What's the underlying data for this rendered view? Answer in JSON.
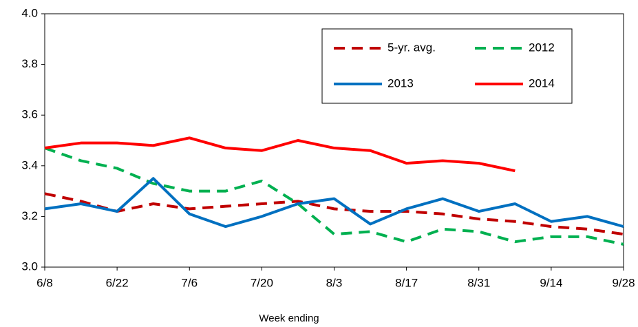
{
  "chart_data": {
    "type": "line",
    "x_label": "Week ending",
    "categories": [
      "6/8",
      null,
      "6/22",
      null,
      "7/6",
      null,
      "7/20",
      null,
      "8/3",
      null,
      "8/17",
      null,
      "8/31",
      null,
      "9/14",
      null,
      "9/28"
    ],
    "series": [
      {
        "name": "5-yr. avg.",
        "color": "#c00000",
        "dashed": true,
        "values": [
          3.29,
          3.26,
          3.22,
          3.25,
          3.23,
          3.24,
          3.25,
          3.26,
          3.23,
          3.22,
          3.22,
          3.21,
          3.19,
          3.18,
          3.16,
          3.15,
          3.13
        ]
      },
      {
        "name": "2012",
        "color": "#00b050",
        "dashed": true,
        "values": [
          3.47,
          3.42,
          3.39,
          3.33,
          3.3,
          3.3,
          3.34,
          3.25,
          3.13,
          3.14,
          3.1,
          3.15,
          3.14,
          3.1,
          3.12,
          3.12,
          3.09
        ]
      },
      {
        "name": "2013",
        "color": "#0070c0",
        "dashed": false,
        "values": [
          3.23,
          3.25,
          3.22,
          3.35,
          3.21,
          3.16,
          3.2,
          3.25,
          3.27,
          3.17,
          3.23,
          3.27,
          3.22,
          3.25,
          3.18,
          3.2,
          3.16
        ]
      },
      {
        "name": "2014",
        "color": "#ff0000",
        "dashed": false,
        "values": [
          3.47,
          3.49,
          3.49,
          3.48,
          3.51,
          3.47,
          3.46,
          3.5,
          3.47,
          3.46,
          3.41,
          3.42,
          3.41,
          3.38,
          null,
          null,
          null
        ]
      }
    ],
    "ylim": [
      3,
      4
    ],
    "yticks": [
      {
        "value": 3,
        "label": "3.0"
      },
      3.2,
      3.4,
      3.6,
      3.8,
      {
        "value": 4,
        "label": "4.0"
      }
    ],
    "grid": false
  }
}
